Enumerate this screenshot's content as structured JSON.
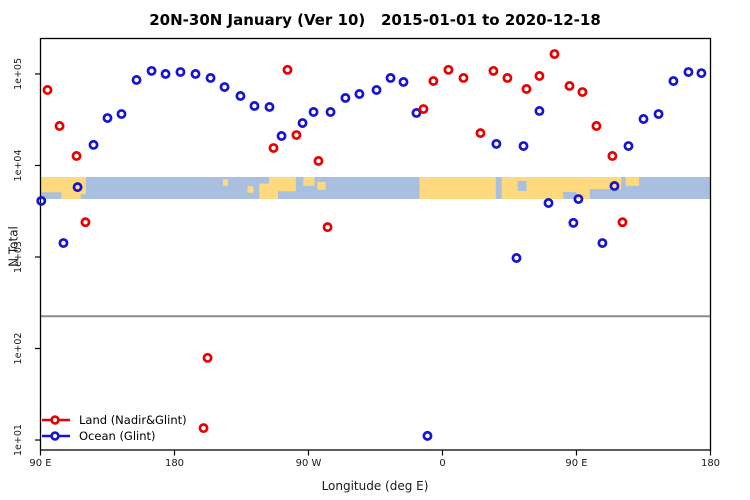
{
  "title": "20N-30N January (Ver 10)   2015-01-01 to 2020-12-18",
  "axes": {
    "xlabel": "Longitude (deg E)",
    "ylabel": "N Total",
    "xlim": [
      90,
      540
    ],
    "ylim_log10": [
      0.891,
      5.393
    ],
    "x_ticks": [
      {
        "v": 90,
        "label": "90 E"
      },
      {
        "v": 180,
        "label": "180"
      },
      {
        "v": 270,
        "label": "90 W"
      },
      {
        "v": 360,
        "label": "0"
      },
      {
        "v": 450,
        "label": "90 E"
      },
      {
        "v": 540,
        "label": "180"
      }
    ],
    "y_ticks": [
      {
        "exp": 5,
        "label": "1e+05"
      },
      {
        "exp": 4,
        "label": "1e+04"
      },
      {
        "exp": 3,
        "label": "1e+03"
      },
      {
        "exp": 2,
        "label": "1e+02"
      },
      {
        "exp": 1,
        "label": "1e+01"
      }
    ]
  },
  "legend": {
    "items": [
      {
        "label": "Land (Nadir&Glint)",
        "color": "#e80000"
      },
      {
        "label": "Ocean (Glint)",
        "color": "#1414d2"
      }
    ]
  },
  "colors": {
    "land_point": "#e80000",
    "ocean_point": "#1414d2",
    "map_land": "#ffd97d",
    "map_ocean": "#a9bfdf",
    "threshold": "#8c8c8c",
    "frame": "#000000"
  },
  "chart_data": {
    "type": "scatter",
    "x_units": "degrees longitude east, wrapped 90E to 180 (i.e. 90..540)",
    "y_scale": "log10",
    "threshold_line": {
      "value": 225
    },
    "map_strip": {
      "top_log10": 3.874,
      "bottom_log10": 3.634,
      "land_segments": [
        [
          90,
          120.5,
          0,
          100
        ],
        [
          212.5,
          216,
          10,
          30
        ],
        [
          229,
          233,
          42,
          30
        ],
        [
          237,
          249.5,
          30,
          70
        ],
        [
          243.5,
          261.5,
          0,
          65
        ],
        [
          266.5,
          274,
          0,
          40
        ],
        [
          276,
          281.5,
          22,
          36
        ],
        [
          344.5,
          459,
          0,
          100
        ],
        [
          459,
          480,
          0,
          55
        ],
        [
          483,
          492,
          0,
          40
        ]
      ],
      "ocean_overlays": [
        [
          90,
          104,
          70,
          30
        ],
        [
          117,
          120.5,
          78,
          22
        ],
        [
          395.8,
          399.8,
          0,
          100
        ],
        [
          410.5,
          416.5,
          18,
          45
        ],
        [
          441,
          450,
          68,
          32
        ]
      ]
    },
    "series": [
      {
        "name": "Land (Nadir&Glint)",
        "points": [
          {
            "lon": 94.7,
            "n": 66800
          },
          {
            "lon": 102.8,
            "n": 27000
          },
          {
            "lon": 114.2,
            "n": 12700
          },
          {
            "lon": 120.2,
            "n": 2400
          },
          {
            "lon": 199.5,
            "n": 13.5
          },
          {
            "lon": 202.2,
            "n": 79
          },
          {
            "lon": 246.5,
            "n": 15500
          },
          {
            "lon": 255.9,
            "n": 111000
          },
          {
            "lon": 261.9,
            "n": 21500
          },
          {
            "lon": 276.7,
            "n": 11200
          },
          {
            "lon": 282.8,
            "n": 2120
          },
          {
            "lon": 347.2,
            "n": 41400
          },
          {
            "lon": 353.9,
            "n": 83700
          },
          {
            "lon": 364.0,
            "n": 111000
          },
          {
            "lon": 374.1,
            "n": 90400
          },
          {
            "lon": 385.5,
            "n": 22600
          },
          {
            "lon": 394.2,
            "n": 108000
          },
          {
            "lon": 403.6,
            "n": 90400
          },
          {
            "lon": 416.4,
            "n": 68500
          },
          {
            "lon": 425.1,
            "n": 95000
          },
          {
            "lon": 435.2,
            "n": 165000
          },
          {
            "lon": 445.3,
            "n": 73900
          },
          {
            "lon": 454.0,
            "n": 63500
          },
          {
            "lon": 463.4,
            "n": 27000
          },
          {
            "lon": 474.1,
            "n": 12700
          },
          {
            "lon": 480.9,
            "n": 2400
          }
        ]
      },
      {
        "name": "Ocean (Glint)",
        "points": [
          {
            "lon": 90.5,
            "n": 4100
          },
          {
            "lon": 105.4,
            "n": 1420
          },
          {
            "lon": 114.9,
            "n": 5800
          },
          {
            "lon": 125.6,
            "n": 16800
          },
          {
            "lon": 135.0,
            "n": 33000
          },
          {
            "lon": 144.4,
            "n": 36500
          },
          {
            "lon": 154.5,
            "n": 86000
          },
          {
            "lon": 164.6,
            "n": 108000
          },
          {
            "lon": 174.0,
            "n": 100000
          },
          {
            "lon": 184.0,
            "n": 105000
          },
          {
            "lon": 194.1,
            "n": 100000
          },
          {
            "lon": 204.2,
            "n": 90400
          },
          {
            "lon": 213.6,
            "n": 72000
          },
          {
            "lon": 224.3,
            "n": 57500
          },
          {
            "lon": 233.7,
            "n": 44700
          },
          {
            "lon": 243.8,
            "n": 43600
          },
          {
            "lon": 251.9,
            "n": 21000
          },
          {
            "lon": 266.0,
            "n": 29100
          },
          {
            "lon": 273.4,
            "n": 38400
          },
          {
            "lon": 284.8,
            "n": 38400
          },
          {
            "lon": 294.8,
            "n": 54700
          },
          {
            "lon": 304.2,
            "n": 60400
          },
          {
            "lon": 315.7,
            "n": 66800
          },
          {
            "lon": 325.1,
            "n": 90400
          },
          {
            "lon": 333.8,
            "n": 81800
          },
          {
            "lon": 342.5,
            "n": 37500
          },
          {
            "lon": 349.9,
            "n": 11.1
          },
          {
            "lon": 396.2,
            "n": 17200
          },
          {
            "lon": 409.7,
            "n": 975
          },
          {
            "lon": 414.4,
            "n": 16300
          },
          {
            "lon": 425.1,
            "n": 39400
          },
          {
            "lon": 431.2,
            "n": 3890
          },
          {
            "lon": 447.9,
            "n": 2360
          },
          {
            "lon": 451.3,
            "n": 4300
          },
          {
            "lon": 467.4,
            "n": 1420
          },
          {
            "lon": 475.5,
            "n": 5970
          },
          {
            "lon": 484.9,
            "n": 16300
          },
          {
            "lon": 495.0,
            "n": 32200
          },
          {
            "lon": 505.1,
            "n": 36500
          },
          {
            "lon": 515.1,
            "n": 83700
          },
          {
            "lon": 525.2,
            "n": 105000
          },
          {
            "lon": 533.9,
            "n": 102000
          }
        ]
      }
    ]
  }
}
